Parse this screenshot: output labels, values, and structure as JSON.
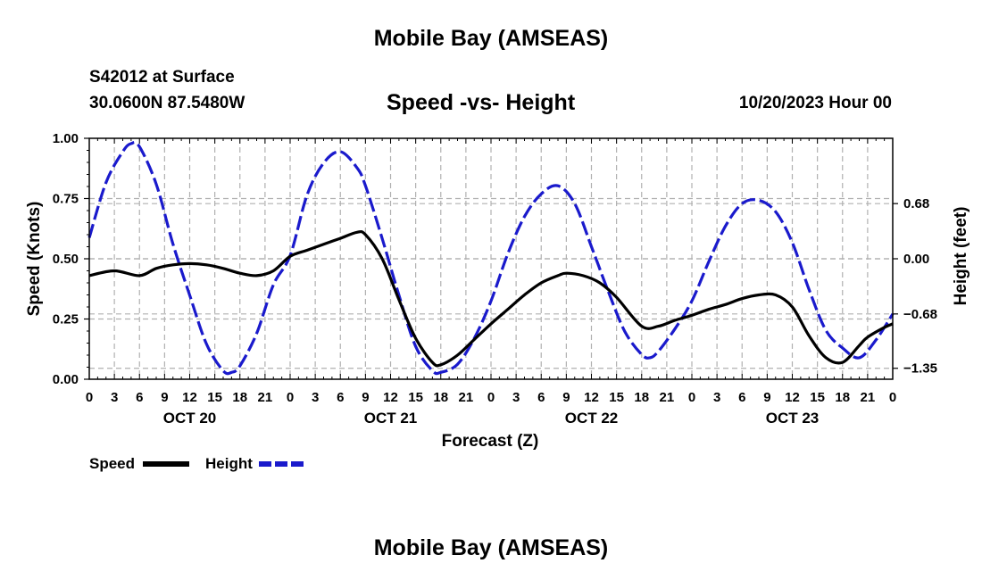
{
  "header": {
    "title": "Mobile Bay (AMSEAS)",
    "station": "S42012 at Surface",
    "coordinates": "30.0600N  87.5480W",
    "subtitle": "Speed -vs- Height",
    "datetime": "10/20/2023 Hour 00"
  },
  "footer": {
    "title": "Mobile Bay (AMSEAS)"
  },
  "chart_data": {
    "type": "line",
    "title": "Speed -vs- Height",
    "xlabel": "Forecast (Z)",
    "ylabel": "Speed (Knots)",
    "y2label": "Height (feet)",
    "xlim": [
      0,
      96
    ],
    "ylim": [
      0,
      1.0
    ],
    "y2lim": [
      -1.4848,
      1.4848
    ],
    "x_tick_labels": [
      "0",
      "3",
      "6",
      "9",
      "12",
      "15",
      "18",
      "21",
      "0",
      "3",
      "6",
      "9",
      "12",
      "15",
      "18",
      "21",
      "0",
      "3",
      "6",
      "9",
      "12",
      "15",
      "18",
      "21",
      "0",
      "3",
      "6",
      "9",
      "12",
      "15",
      "18",
      "21",
      "0"
    ],
    "x_tick_hours": [
      0,
      3,
      6,
      9,
      12,
      15,
      18,
      21,
      24,
      27,
      30,
      33,
      36,
      39,
      42,
      45,
      48,
      51,
      54,
      57,
      60,
      63,
      66,
      69,
      72,
      75,
      78,
      81,
      84,
      87,
      90,
      93,
      96
    ],
    "day_labels": [
      "OCT 20",
      "OCT 21",
      "OCT 22",
      "OCT 23"
    ],
    "day_label_hours": [
      12,
      36,
      60,
      84
    ],
    "y_ticks": [
      0.0,
      0.25,
      0.5,
      0.75,
      1.0
    ],
    "y_tick_labels": [
      "0.00",
      "0.25",
      "0.50",
      "0.75",
      "1.00"
    ],
    "y2_ticks": [
      -1.35,
      -0.68,
      0.0,
      0.68
    ],
    "y2_tick_labels": [
      "−1.35",
      "−0.68",
      "0.00",
      "0.68"
    ],
    "grid": true,
    "legend": {
      "placement": "bottom-left",
      "labels": [
        "Speed",
        "Height"
      ]
    },
    "series": [
      {
        "name": "Speed",
        "axis": "left",
        "color": "#000000",
        "dash": "solid",
        "x": [
          0,
          3,
          6,
          8,
          10,
          12,
          14,
          16,
          18,
          20,
          22,
          24,
          26,
          28,
          30,
          32,
          33,
          35,
          37,
          39,
          41,
          42,
          44,
          46,
          48,
          50,
          52,
          54,
          56,
          57,
          59,
          61,
          63,
          66,
          68,
          70,
          72,
          74,
          76,
          78,
          80,
          82,
          84,
          86,
          88,
          90,
          92,
          93,
          95,
          96
        ],
        "y": [
          0.43,
          0.45,
          0.43,
          0.46,
          0.475,
          0.48,
          0.475,
          0.46,
          0.44,
          0.43,
          0.45,
          0.51,
          0.535,
          0.56,
          0.585,
          0.61,
          0.6,
          0.5,
          0.33,
          0.17,
          0.07,
          0.06,
          0.1,
          0.165,
          0.23,
          0.29,
          0.35,
          0.4,
          0.43,
          0.44,
          0.43,
          0.4,
          0.34,
          0.22,
          0.22,
          0.245,
          0.265,
          0.29,
          0.31,
          0.335,
          0.35,
          0.35,
          0.3,
          0.18,
          0.09,
          0.07,
          0.14,
          0.175,
          0.215,
          0.23
        ]
      },
      {
        "name": "Height",
        "axis": "right",
        "color": "#1a1acc",
        "dash": "dashed",
        "x": [
          0,
          2,
          4,
          5,
          6,
          8,
          10,
          12,
          14,
          16,
          17,
          18,
          20,
          22,
          24,
          26,
          28,
          30,
          32,
          33,
          35,
          37,
          39,
          41,
          42,
          44,
          46,
          48,
          50,
          52,
          54,
          56,
          58,
          60,
          62,
          64,
          66,
          67,
          68,
          70,
          72,
          74,
          76,
          78,
          80,
          82,
          84,
          86,
          88,
          90,
          92,
          94,
          96
        ],
        "y": [
          0.26,
          0.94,
          1.32,
          1.42,
          1.38,
          0.92,
          0.18,
          -0.45,
          -1.05,
          -1.38,
          -1.4,
          -1.32,
          -0.92,
          -0.32,
          0.04,
          0.78,
          1.18,
          1.32,
          1.12,
          0.9,
          0.25,
          -0.45,
          -1.08,
          -1.38,
          -1.4,
          -1.3,
          -0.98,
          -0.52,
          0.06,
          0.52,
          0.8,
          0.9,
          0.68,
          0.15,
          -0.4,
          -0.9,
          -1.18,
          -1.22,
          -1.14,
          -0.86,
          -0.52,
          -0.04,
          0.4,
          0.68,
          0.72,
          0.58,
          0.2,
          -0.38,
          -0.88,
          -1.1,
          -1.22,
          -1.0,
          -0.68
        ]
      }
    ]
  }
}
